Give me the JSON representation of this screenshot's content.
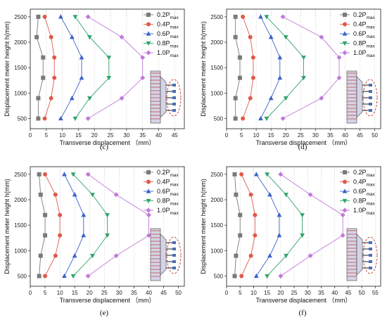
{
  "chart_data": [
    {
      "type": "line",
      "panel_label": "(c)",
      "xlabel": "Transverse displacement （mm）",
      "ylabel": "Displacement meter height h(mm)",
      "xlim": [
        0,
        48
      ],
      "ylim": [
        300,
        2650
      ],
      "xticks": [
        "0",
        "5",
        "10",
        "15",
        "20",
        "25",
        "30",
        "35",
        "40",
        "45"
      ],
      "xtick_values": [
        0,
        5,
        10,
        15,
        20,
        25,
        30,
        35,
        40,
        45
      ],
      "yticks": [
        "500",
        "1000",
        "1500",
        "2000",
        "2500"
      ],
      "ytick_values": [
        500,
        1000,
        1500,
        2000,
        2500
      ],
      "y": [
        500,
        900,
        1300,
        1700,
        2100,
        2500
      ],
      "legend_position": "top-right",
      "grid": "vertical dotted",
      "series": [
        {
          "name_main": "0.2P",
          "name_sub": "max",
          "marker": "square",
          "color": "#7a7a7a",
          "x": [
            2.5,
            2.5,
            4,
            4,
            2,
            2.5
          ]
        },
        {
          "name_main": "0.4P",
          "name_sub": "max",
          "marker": "circle",
          "color": "#e05a4a",
          "x": [
            4.5,
            6.5,
            7.5,
            7.5,
            6.5,
            4.5
          ]
        },
        {
          "name_main": "0.6P",
          "name_sub": "max",
          "marker": "triangle-up",
          "color": "#3a63c8",
          "x": [
            9.5,
            13,
            16,
            16,
            13,
            9.5
          ]
        },
        {
          "name_main": "0.8P",
          "name_sub": "max",
          "marker": "triangle-down",
          "color": "#2fa46a",
          "x": [
            14,
            18.5,
            24.5,
            24.5,
            18.5,
            14
          ]
        },
        {
          "name_main": "1.0P",
          "name_sub": "max",
          "marker": "diamond",
          "color": "#c07ad8",
          "x": [
            18,
            28.5,
            35,
            35,
            28.5,
            18
          ]
        }
      ]
    },
    {
      "type": "line",
      "panel_label": "(d)",
      "xlabel": "Transverse displacement （mm）",
      "ylabel": "Displacement meter height h(mm)",
      "xlim": [
        0,
        52
      ],
      "ylim": [
        300,
        2650
      ],
      "xticks": [
        "0",
        "5",
        "10",
        "15",
        "20",
        "25",
        "30",
        "35",
        "40",
        "45",
        "50"
      ],
      "xtick_values": [
        0,
        5,
        10,
        15,
        20,
        25,
        30,
        35,
        40,
        45,
        50
      ],
      "yticks": [
        "500",
        "1000",
        "1500",
        "2000",
        "2500"
      ],
      "ytick_values": [
        500,
        1000,
        1500,
        2000,
        2500
      ],
      "y": [
        500,
        900,
        1300,
        1700,
        2100,
        2500
      ],
      "legend_position": "top-right",
      "grid": "vertical dotted",
      "series": [
        {
          "name_main": "0.2P",
          "name_sub": "max",
          "marker": "square",
          "color": "#7a7a7a",
          "x": [
            3,
            3,
            4.5,
            4.5,
            3,
            3
          ]
        },
        {
          "name_main": "0.4P",
          "name_sub": "max",
          "marker": "circle",
          "color": "#e05a4a",
          "x": [
            5.5,
            8,
            9,
            9,
            8,
            5.5
          ]
        },
        {
          "name_main": "0.6P",
          "name_sub": "max",
          "marker": "triangle-up",
          "color": "#3a63c8",
          "x": [
            11.5,
            15,
            18,
            18,
            15,
            11.5
          ]
        },
        {
          "name_main": "0.8P",
          "name_sub": "max",
          "marker": "triangle-down",
          "color": "#2fa46a",
          "x": [
            13.5,
            20,
            26,
            26,
            20,
            13.5
          ]
        },
        {
          "name_main": "1.0P",
          "name_sub": "max",
          "marker": "diamond",
          "color": "#c07ad8",
          "x": [
            19,
            32,
            38,
            38,
            32,
            19
          ]
        }
      ]
    },
    {
      "type": "line",
      "panel_label": "(e)",
      "xlabel": "Transverse displacement （mm）",
      "ylabel": "Displacement meter height h(mm)",
      "xlim": [
        0,
        52
      ],
      "ylim": [
        300,
        2650
      ],
      "xticks": [
        "0",
        "5",
        "10",
        "15",
        "20",
        "25",
        "30",
        "35",
        "40",
        "45",
        "50"
      ],
      "xtick_values": [
        0,
        5,
        10,
        15,
        20,
        25,
        30,
        35,
        40,
        45,
        50
      ],
      "yticks": [
        "500",
        "1000",
        "1500",
        "2000",
        "2500"
      ],
      "ytick_values": [
        500,
        1000,
        1500,
        2000,
        2500
      ],
      "y": [
        500,
        900,
        1300,
        1700,
        2100,
        2500
      ],
      "legend_position": "top-right",
      "grid": "vertical dotted",
      "series": [
        {
          "name_main": "0.2P",
          "name_sub": "max",
          "marker": "square",
          "color": "#7a7a7a",
          "x": [
            3,
            3.5,
            5,
            5,
            3.5,
            3
          ]
        },
        {
          "name_main": "0.4P",
          "name_sub": "max",
          "marker": "circle",
          "color": "#e05a4a",
          "x": [
            5,
            8.5,
            10,
            10,
            8.5,
            5
          ]
        },
        {
          "name_main": "0.6P",
          "name_sub": "max",
          "marker": "triangle-up",
          "color": "#3a63c8",
          "x": [
            11.5,
            15,
            18,
            18,
            15,
            11.5
          ]
        },
        {
          "name_main": "0.8P",
          "name_sub": "max",
          "marker": "triangle-down",
          "color": "#2fa46a",
          "x": [
            14.5,
            21,
            26,
            26,
            21,
            14.5
          ]
        },
        {
          "name_main": "1.0P",
          "name_sub": "max",
          "marker": "diamond",
          "color": "#c07ad8",
          "x": [
            19.5,
            29,
            40,
            40,
            29,
            19.5
          ]
        }
      ]
    },
    {
      "type": "line",
      "panel_label": "(f)",
      "xlabel": "Transverse displacement （mm）",
      "ylabel": "Displacement meter height h(mm)",
      "xlim": [
        0,
        57
      ],
      "ylim": [
        300,
        2650
      ],
      "xticks": [
        "0",
        "5",
        "10",
        "15",
        "20",
        "25",
        "30",
        "35",
        "40",
        "45",
        "50",
        "55"
      ],
      "xtick_values": [
        0,
        5,
        10,
        15,
        20,
        25,
        30,
        35,
        40,
        45,
        50,
        55
      ],
      "yticks": [
        "500",
        "1000",
        "1500",
        "2000",
        "2500"
      ],
      "ytick_values": [
        500,
        1000,
        1500,
        2000,
        2500
      ],
      "y": [
        500,
        900,
        1300,
        1700,
        2100,
        2500
      ],
      "legend_position": "top-right",
      "grid": "vertical dotted",
      "series": [
        {
          "name_main": "0.2P",
          "name_sub": "max",
          "marker": "square",
          "color": "#7a7a7a",
          "x": [
            3,
            3.5,
            5,
            5,
            3.5,
            3
          ]
        },
        {
          "name_main": "0.4P",
          "name_sub": "max",
          "marker": "circle",
          "color": "#e05a4a",
          "x": [
            5.5,
            9,
            10.5,
            10.5,
            9,
            5.5
          ]
        },
        {
          "name_main": "0.6P",
          "name_sub": "max",
          "marker": "triangle-up",
          "color": "#3a63c8",
          "x": [
            11,
            16,
            19.5,
            19.5,
            16,
            11
          ]
        },
        {
          "name_main": "0.8P",
          "name_sub": "max",
          "marker": "triangle-down",
          "color": "#2fa46a",
          "x": [
            15,
            22,
            28,
            28,
            22,
            15
          ]
        },
        {
          "name_main": "1.0P",
          "name_sub": "max",
          "marker": "diamond",
          "color": "#c07ad8",
          "x": [
            20,
            31,
            43,
            43,
            31,
            20
          ]
        }
      ]
    }
  ]
}
